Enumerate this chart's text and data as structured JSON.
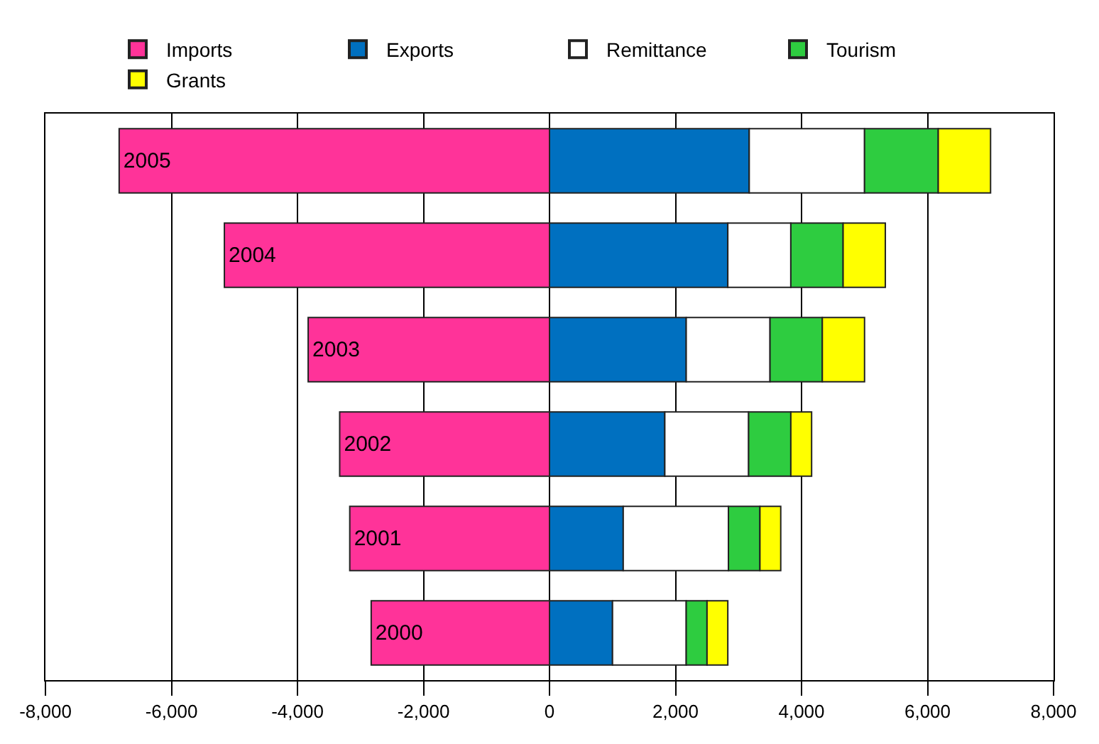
{
  "chart_data": {
    "type": "bar",
    "orientation": "horizontal",
    "stacked": true,
    "categories": [
      "2005",
      "2004",
      "2003",
      "2002",
      "2001",
      "2000"
    ],
    "series": [
      {
        "name": "Imports",
        "color": "#ff3399",
        "values": [
          -6830,
          -5160,
          -3830,
          -3330,
          -3170,
          -2830
        ]
      },
      {
        "name": "Exports",
        "color": "#0070c0",
        "values": [
          3170,
          2830,
          2170,
          1830,
          1170,
          1000
        ]
      },
      {
        "name": "Remittance",
        "color": "#ffffff",
        "values": [
          1830,
          1000,
          1330,
          1330,
          1670,
          1170
        ]
      },
      {
        "name": "Tourism",
        "color": "#2ecc40",
        "values": [
          1170,
          830,
          830,
          670,
          500,
          330
        ]
      },
      {
        "name": "Grants",
        "color": "#ffff00",
        "values": [
          830,
          670,
          670,
          330,
          330,
          330
        ]
      }
    ],
    "xlim": [
      -8000,
      8000
    ],
    "xticks": [
      {
        "value": -8000,
        "label": "-8,000"
      },
      {
        "value": -6000,
        "label": "-6,000"
      },
      {
        "value": -4000,
        "label": "-4,000"
      },
      {
        "value": -2000,
        "label": "-2,000"
      },
      0,
      {
        "value": 2000,
        "label": "2,000"
      },
      {
        "value": 4000,
        "label": "4,000"
      },
      {
        "value": 6000,
        "label": "6,000"
      },
      {
        "value": 8000,
        "label": "8,000"
      }
    ],
    "grid": "x",
    "legend": "top"
  }
}
